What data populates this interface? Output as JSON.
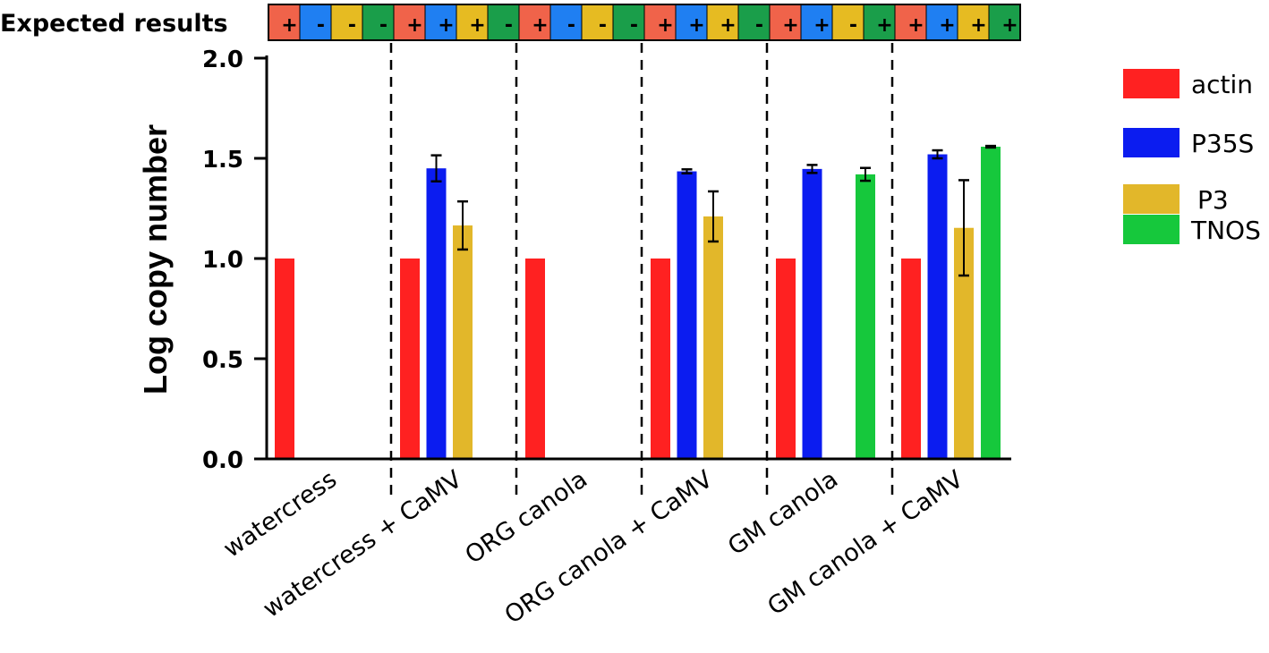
{
  "chart_data": {
    "type": "bar",
    "ylabel": "Log copy number",
    "ylim": [
      0,
      2.0
    ],
    "yticks": [
      0.0,
      0.5,
      1.0,
      1.5,
      2.0
    ],
    "ytick_labels": [
      "0.0",
      "0.5",
      "1.0",
      "1.5",
      "2.0"
    ],
    "categories": [
      "watercress",
      "watercress + CaMV",
      "ORG canola",
      "ORG canola + CaMV",
      "GM canola",
      "GM canola + CaMV"
    ],
    "series": [
      {
        "name": "actin",
        "color": "#ff2121",
        "values": [
          1.0,
          1.0,
          1.0,
          1.0,
          1.0,
          1.0
        ],
        "errors": [
          0,
          0,
          0,
          0,
          0,
          0
        ]
      },
      {
        "name": "P35S",
        "color": "#0b1cf0",
        "values": [
          0,
          1.45,
          0,
          1.435,
          1.447,
          1.52
        ],
        "errors": [
          0,
          0.065,
          0,
          0.01,
          0.02,
          0.02
        ]
      },
      {
        "name": "P3",
        "color": "#e2b72a",
        "values": [
          0,
          1.165,
          0,
          1.21,
          0,
          1.153
        ],
        "errors": [
          0,
          0.12,
          0,
          0.125,
          0,
          0.238
        ]
      },
      {
        "name": "TNOS",
        "color": "#16c83c",
        "values": [
          0,
          0,
          0,
          0,
          1.42,
          1.558
        ],
        "errors": [
          0,
          0,
          0,
          0,
          0.032,
          0.004
        ]
      }
    ],
    "legend_position": "right"
  },
  "expected": {
    "title": "Expected results",
    "cell_colors": [
      "#f0634a",
      "#1f7ff2",
      "#e6bb22",
      "#1a9e4a"
    ],
    "groups": [
      [
        "+",
        "-",
        "-",
        "-"
      ],
      [
        "+",
        "+",
        "+",
        "-"
      ],
      [
        "+",
        "-",
        "-",
        "-"
      ],
      [
        "+",
        "+",
        "+",
        "-"
      ],
      [
        "+",
        "+",
        "-",
        "+"
      ],
      [
        "+",
        "+",
        "+",
        "+"
      ]
    ]
  }
}
